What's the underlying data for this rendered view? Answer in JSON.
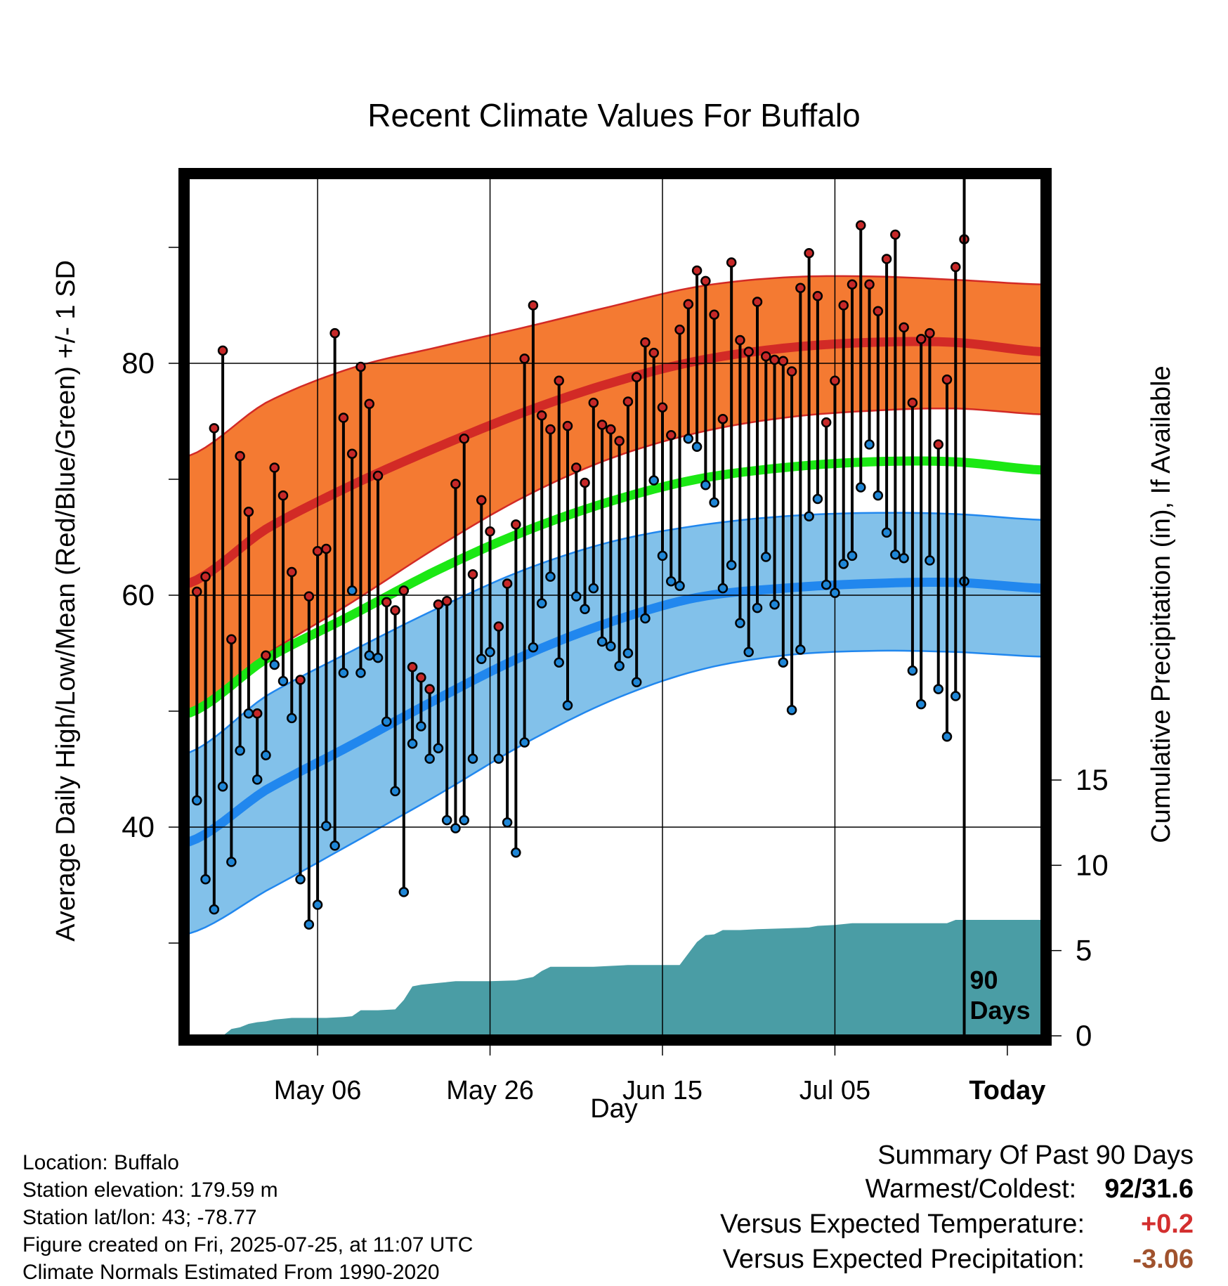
{
  "chart_data": {
    "type": "line",
    "title": "Recent Climate Values For Buffalo",
    "xlabel": "Day",
    "ylabel": "Average Daily High/Low/Mean (Red/Blue/Green) +/- 1 SD",
    "y2label": "Cumulative Precipitation (in), If Available",
    "x_tick_labels": [
      "May 06",
      "May 26",
      "Jun 15",
      "Jul 05",
      "Today"
    ],
    "y_tick_labels": [
      "40",
      "60",
      "80"
    ],
    "y2_tick_labels": [
      "0",
      "5",
      "10",
      "15"
    ],
    "today_label": "90 Days",
    "xlim_days": [
      1,
      100
    ],
    "today_day": 91,
    "ylim": [
      22,
      96
    ],
    "y2lim": [
      0,
      15
    ],
    "normals": {
      "days": [
        1,
        10,
        20,
        30,
        40,
        50,
        60,
        70,
        80,
        90,
        100
      ],
      "high_mean": [
        61,
        65.7,
        69.5,
        72.8,
        75.8,
        78.3,
        80.2,
        81.3,
        81.8,
        81.8,
        81.0
      ],
      "high_sd_upper": [
        72.0,
        76.6,
        79.6,
        81.4,
        83.1,
        84.9,
        86.6,
        87.4,
        87.5,
        87.2,
        86.8
      ],
      "high_sd_lower": [
        50.0,
        54.9,
        59.4,
        64.2,
        68.5,
        71.8,
        74.0,
        75.3,
        75.9,
        76.1,
        75.6
      ],
      "mean": [
        49.8,
        54.5,
        58.3,
        62.2,
        65.5,
        68.1,
        70.0,
        71.0,
        71.5,
        71.5,
        70.8
      ],
      "low_mean": [
        38.7,
        43.2,
        47.1,
        51.1,
        54.8,
        57.7,
        59.8,
        60.6,
        61.0,
        61.1,
        60.6
      ],
      "low_sd_upper": [
        46.4,
        51.3,
        55.2,
        58.9,
        62.2,
        64.6,
        66.0,
        66.8,
        67.1,
        67.0,
        66.5
      ],
      "low_sd_lower": [
        30.8,
        34.5,
        38.6,
        42.8,
        47.2,
        50.9,
        53.5,
        54.8,
        55.2,
        55.1,
        54.7
      ]
    },
    "observed": {
      "highs": [
        60.3,
        61.6,
        74.4,
        81.1,
        56.2,
        72.0,
        67.2,
        49.8,
        54.8,
        71.0,
        68.6,
        62.0,
        52.7,
        59.9,
        63.8,
        64.0,
        82.6,
        75.3,
        72.2,
        79.7,
        76.5,
        70.3,
        59.4,
        58.7,
        60.4,
        53.8,
        52.9,
        51.9,
        59.2,
        59.5,
        69.6,
        73.5,
        61.8,
        68.2,
        65.5,
        57.3,
        61.0,
        66.1,
        80.4,
        85.0,
        75.5,
        74.3,
        78.5,
        74.6,
        71.0,
        69.7,
        76.6,
        74.7,
        74.3,
        73.3,
        76.7,
        78.8,
        81.8,
        80.9,
        76.2,
        73.8,
        82.9,
        85.1,
        88.0,
        87.1,
        84.2,
        75.2,
        88.7,
        82.0,
        81.0,
        85.3,
        80.6,
        80.3,
        80.2,
        79.3,
        86.5,
        89.5,
        85.8,
        74.9,
        78.5,
        85.0,
        86.8,
        91.9,
        86.8,
        84.5,
        89.0,
        91.1,
        83.1,
        76.6,
        82.1,
        82.6,
        73.0,
        78.6,
        88.3,
        90.7
      ],
      "lows": [
        42.3,
        35.5,
        32.9,
        43.5,
        37.0,
        46.6,
        49.8,
        44.1,
        46.2,
        54.0,
        52.6,
        49.4,
        35.5,
        31.6,
        33.3,
        40.1,
        38.4,
        53.3,
        60.4,
        53.3,
        54.8,
        54.6,
        49.1,
        43.1,
        34.4,
        47.2,
        48.7,
        45.9,
        46.8,
        40.6,
        39.9,
        40.6,
        45.9,
        54.5,
        55.1,
        45.9,
        40.4,
        37.8,
        47.3,
        55.5,
        59.3,
        61.6,
        54.2,
        50.5,
        59.9,
        58.8,
        60.6,
        56.0,
        55.6,
        53.9,
        55.0,
        52.5,
        58.0,
        69.9,
        63.4,
        61.2,
        60.8,
        73.5,
        72.8,
        69.5,
        68.0,
        60.6,
        62.6,
        57.6,
        55.1,
        58.9,
        63.3,
        59.2,
        54.2,
        50.1,
        55.3,
        66.8,
        68.3,
        60.9,
        60.2,
        62.7,
        63.4,
        69.3,
        73.0,
        68.6,
        65.4,
        63.5,
        63.2,
        53.5,
        50.6,
        63.0,
        51.9,
        47.8,
        51.3,
        61.2
      ]
    },
    "precip_cumulative": {
      "days": [
        1,
        5,
        6,
        7,
        8,
        9,
        10,
        11,
        12,
        13,
        15,
        17,
        19,
        20,
        21,
        22,
        23,
        25,
        26,
        27,
        28,
        30,
        32,
        34,
        36,
        39,
        41,
        42,
        43,
        44,
        46,
        48,
        50,
        52,
        54,
        56,
        58,
        60,
        61,
        62,
        63,
        64,
        65,
        67,
        70,
        73,
        74,
        76,
        78,
        80,
        82,
        84,
        86,
        88,
        89,
        90,
        91,
        100
      ],
      "values": [
        0,
        0,
        0.4,
        0.5,
        0.7,
        0.8,
        0.85,
        0.95,
        1.0,
        1.05,
        1.05,
        1.05,
        1.1,
        1.15,
        1.5,
        1.5,
        1.5,
        1.55,
        2.1,
        2.9,
        3.0,
        3.1,
        3.2,
        3.2,
        3.2,
        3.25,
        3.45,
        3.8,
        4.05,
        4.05,
        4.05,
        4.05,
        4.1,
        4.15,
        4.15,
        4.15,
        4.15,
        5.5,
        5.9,
        5.95,
        6.2,
        6.2,
        6.2,
        6.25,
        6.3,
        6.35,
        6.45,
        6.5,
        6.6,
        6.6,
        6.6,
        6.6,
        6.6,
        6.6,
        6.6,
        6.8,
        6.8,
        6.8
      ]
    },
    "grid": true,
    "colors": {
      "high_band": "#f47a32",
      "high_line": "#d22a26",
      "mean_line": "#1be814",
      "low_band": "#82c1ea",
      "low_line": "#2187ee",
      "precip": "#4a9da5",
      "high_dot": "#c62828",
      "low_dot": "#1f86d6"
    }
  },
  "location_info": {
    "location": "Location: Buffalo",
    "elevation": "Station elevation: 179.59 m",
    "latlon": "Station lat/lon: 43; -78.77",
    "created": "Figure created on Fri, 2025-07-25, at 11:07 UTC",
    "normals": "Climate Normals Estimated From 1990-2020"
  },
  "summary": {
    "title": "Summary Of Past 90 Days",
    "warmest_label": "Warmest/Coldest:",
    "warmest_value": "92/31.6",
    "temp_label": "Versus Expected Temperature:",
    "temp_value": "+0.2",
    "temp_color": "#d32f2f",
    "precip_label": "Versus Expected Precipitation:",
    "precip_value": "-3.06",
    "precip_color": "#a0522d"
  }
}
